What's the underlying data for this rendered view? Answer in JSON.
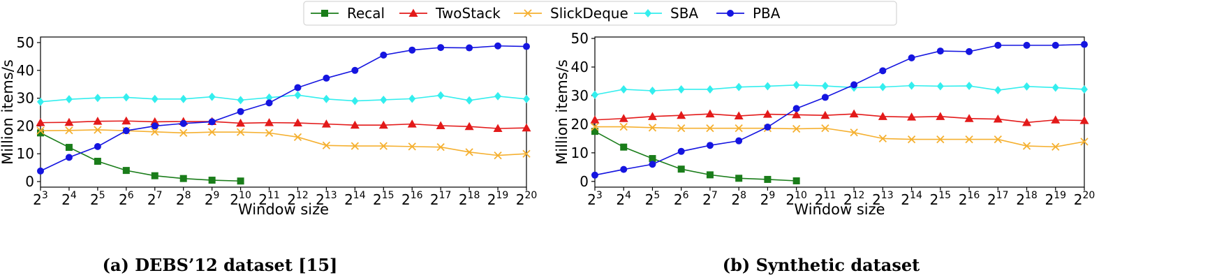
{
  "legend": [
    {
      "name": "Recal",
      "color": "#1a7d1a",
      "marker": "square"
    },
    {
      "name": "TwoStack",
      "color": "#e31a1a",
      "marker": "triangle"
    },
    {
      "name": "SlickDeque",
      "color": "#f5b030",
      "marker": "x"
    },
    {
      "name": "SBA",
      "color": "#33eeee",
      "marker": "diamond"
    },
    {
      "name": "PBA",
      "color": "#1515e0",
      "marker": "circle"
    }
  ],
  "chart_data": [
    {
      "type": "line",
      "caption": "(a) DEBS’12 dataset [15]",
      "xlabel": "Window size",
      "ylabel": "Million items/s",
      "ylim": [
        -2,
        52
      ],
      "yticks": [
        "0",
        "10",
        "20",
        "30",
        "40",
        "50"
      ],
      "x_base": "2",
      "x_exponents": [
        "3",
        "4",
        "5",
        "6",
        "7",
        "8",
        "9",
        "10",
        "11",
        "12",
        "13",
        "14",
        "15",
        "16",
        "17",
        "18",
        "19",
        "20"
      ],
      "series": [
        {
          "name": "Recal",
          "values": [
            17.5,
            12.3,
            7.3,
            4.0,
            2.1,
            1.1,
            0.5,
            0.2
          ]
        },
        {
          "name": "TwoStack",
          "values": [
            21.2,
            21.3,
            21.7,
            21.8,
            21.5,
            21.6,
            21.6,
            21.0,
            21.2,
            21.1,
            20.7,
            20.3,
            20.3,
            20.7,
            20.1,
            19.8,
            19.1,
            19.3
          ]
        },
        {
          "name": "SlickDeque",
          "values": [
            18.3,
            18.4,
            18.6,
            18.3,
            17.9,
            17.5,
            17.8,
            17.8,
            17.5,
            16.0,
            13.0,
            12.8,
            12.8,
            12.6,
            12.4,
            10.6,
            9.4,
            10.0
          ]
        },
        {
          "name": "SBA",
          "values": [
            28.7,
            29.6,
            30.1,
            30.3,
            29.7,
            29.7,
            30.5,
            29.3,
            30.2,
            31.1,
            29.7,
            29.0,
            29.4,
            29.8,
            31.0,
            29.2,
            30.7,
            29.7
          ]
        },
        {
          "name": "PBA",
          "values": [
            3.8,
            8.7,
            12.6,
            18.3,
            20.0,
            20.9,
            21.5,
            25.2,
            28.3,
            33.8,
            37.2,
            40.0,
            45.5,
            47.3,
            48.2,
            48.1,
            48.8,
            48.6
          ]
        }
      ]
    },
    {
      "type": "line",
      "caption": "(b) Synthetic dataset",
      "xlabel": "Window size",
      "ylabel": "Million items/s",
      "ylim": [
        -2,
        50.5
      ],
      "yticks": [
        "0",
        "10",
        "20",
        "30",
        "40",
        "50"
      ],
      "x_base": "2",
      "x_exponents": [
        "3",
        "4",
        "5",
        "6",
        "7",
        "8",
        "9",
        "10",
        "11",
        "12",
        "13",
        "14",
        "15",
        "16",
        "17",
        "18",
        "19",
        "20"
      ],
      "series": [
        {
          "name": "Recal",
          "values": [
            17.5,
            12.0,
            8.0,
            4.3,
            2.3,
            1.1,
            0.7,
            0.2
          ]
        },
        {
          "name": "TwoStack",
          "values": [
            21.5,
            22.0,
            22.7,
            23.1,
            23.6,
            22.9,
            23.5,
            23.3,
            23.1,
            23.6,
            22.7,
            22.5,
            22.7,
            22.0,
            21.8,
            20.6,
            21.5,
            21.3
          ]
        },
        {
          "name": "SlickDeque",
          "values": [
            19.1,
            19.1,
            18.8,
            18.6,
            18.6,
            18.6,
            18.6,
            18.4,
            18.6,
            17.1,
            15.0,
            14.7,
            14.7,
            14.7,
            14.7,
            12.4,
            12.1,
            13.9
          ]
        },
        {
          "name": "SBA",
          "values": [
            30.3,
            32.2,
            31.7,
            32.2,
            32.2,
            33.0,
            33.3,
            33.7,
            33.4,
            32.8,
            33.0,
            33.5,
            33.3,
            33.4,
            31.9,
            33.2,
            32.8,
            32.2
          ]
        },
        {
          "name": "PBA",
          "values": [
            2.2,
            4.2,
            6.0,
            10.5,
            12.6,
            14.2,
            19.0,
            25.5,
            29.4,
            33.8,
            38.7,
            43.2,
            45.6,
            45.4,
            47.6,
            47.6,
            47.6,
            47.9
          ]
        }
      ]
    }
  ]
}
